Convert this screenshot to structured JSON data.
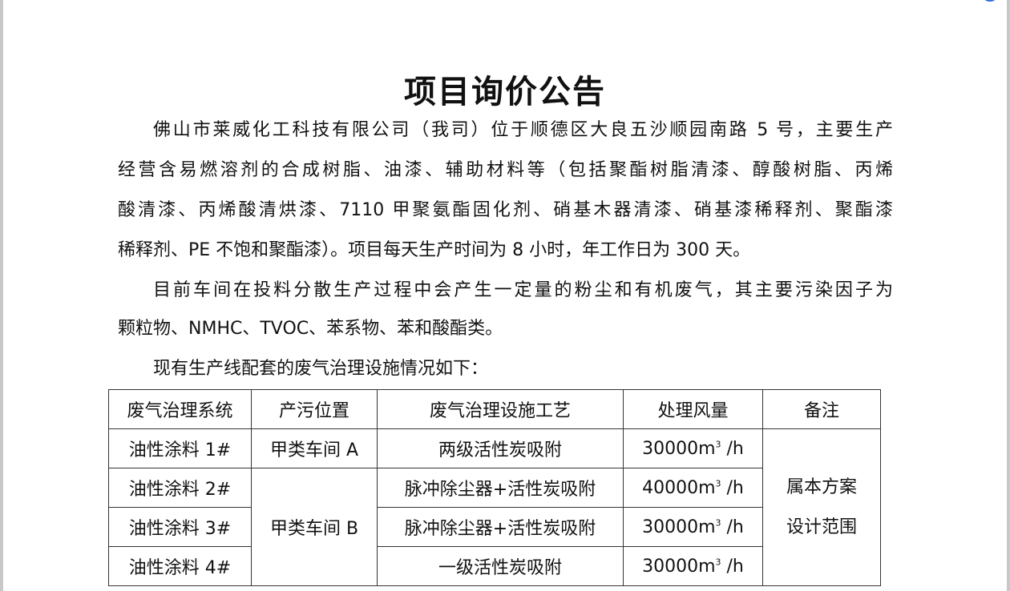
{
  "title": "项目询价公告",
  "paragraphs": [
    {
      "lines": [
        "佛山市莱威化工科技有限公司（我司）位于顺德区大良五沙顺园南路 5 号，主要生产",
        "经营含易燃溶剂的合成树脂、油漆、辅助材料等（包括聚酯树脂清漆、醇酸树脂、丙烯",
        "酸清漆、丙烯酸清烘漆、7110 甲聚氨酯固化剂、硝基木器清漆、硝基漆稀释剂、聚酯漆",
        "稀释剂、PE 不饱和聚酯漆）。项目每天生产时间为 8 小时，年工作日为 300 天。"
      ]
    },
    {
      "lines": [
        "目前车间在投料分散生产过程中会产生一定量的粉尘和有机废气，其主要污染因子为",
        "颗粒物、NMHC、TVOC、苯系物、苯和酸酯类。"
      ]
    },
    {
      "lines": [
        "现有生产线配套的废气治理设施情况如下："
      ]
    }
  ],
  "table": {
    "headers": [
      "废气治理系统",
      "产污位置",
      "废气治理设施工艺",
      "处理风量",
      "备注"
    ],
    "rows": [
      {
        "system": "油性涂料  1#",
        "location": "甲类车间 A",
        "process": "两级活性炭吸附",
        "flow": "30000m",
        "unit": " /h"
      },
      {
        "system": "油性涂料  2#",
        "location": "甲类车间 B",
        "process": "脉冲除尘器+活性炭吸附",
        "flow": "40000m",
        "unit": " /h"
      },
      {
        "system": "油性涂料  3#",
        "process": "脉冲除尘器+活性炭吸附",
        "flow": "30000m",
        "unit": " /h"
      },
      {
        "system": "油性涂料  4#",
        "process": "一级活性炭吸附",
        "flow": "30000m",
        "unit": " /h"
      }
    ],
    "superscript": "3",
    "remark_lines": [
      "属本方案",
      "设计范围"
    ]
  }
}
